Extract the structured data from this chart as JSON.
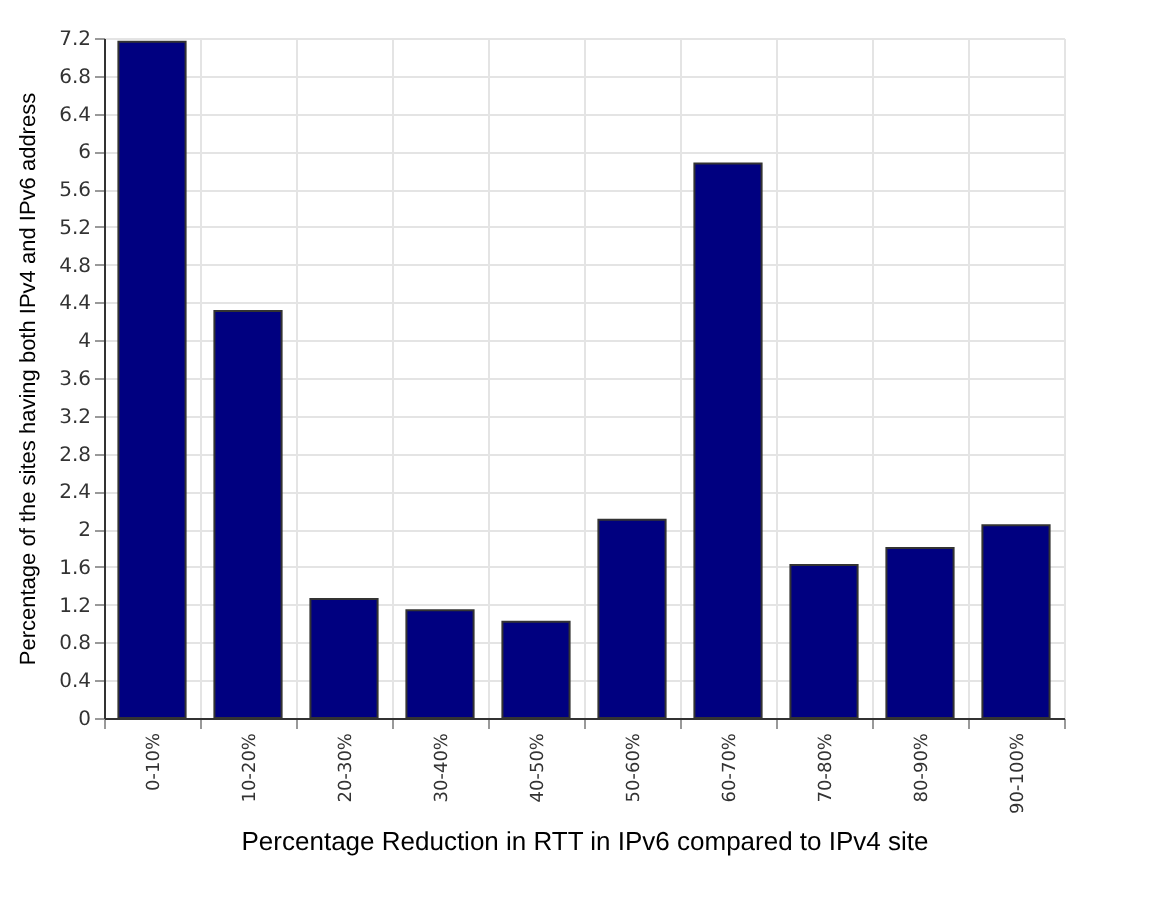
{
  "chart_data": {
    "type": "bar",
    "xlabel": "Percentage Reduction in RTT in IPv6 compared to IPv4 site",
    "ylabel": "Percentage of the sites having both IPv4 and IPv6 address",
    "categories": [
      "0-10%",
      "10-20%",
      "20-30%",
      "30-40%",
      "40-50%",
      "50-60%",
      "60-70%",
      "70-80%",
      "80-90%",
      "90-100%"
    ],
    "values": [
      7.16,
      4.31,
      1.26,
      1.14,
      1.02,
      2.1,
      5.87,
      1.62,
      1.8,
      2.04
    ],
    "color": "#000080",
    "ylim": [
      0,
      7.2
    ],
    "yticks": [
      0,
      0.4,
      0.8,
      1.2,
      1.6,
      2,
      2.4,
      2.8,
      3.2,
      3.6,
      4,
      4.4,
      4.8,
      5.2,
      5.6,
      6,
      6.4,
      6.8,
      7.2
    ],
    "grid": true
  }
}
